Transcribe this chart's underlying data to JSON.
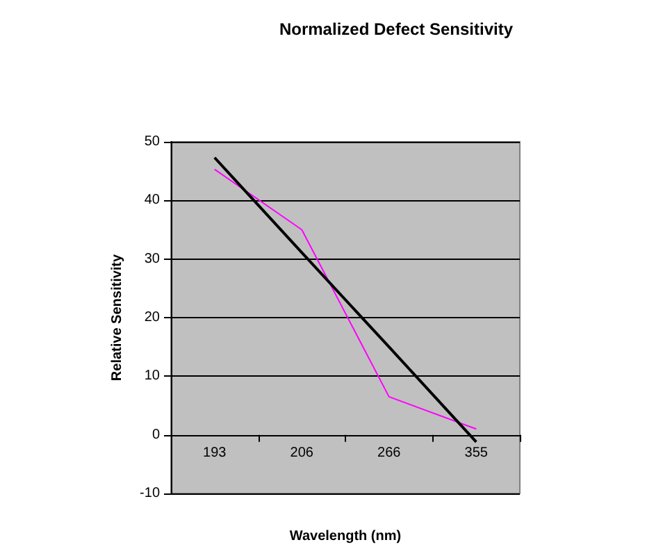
{
  "chart_data": {
    "type": "line",
    "title": "Normalized Defect Sensitivity",
    "xlabel": "Wavelength (nm)",
    "ylabel": "Relative Sensitivity",
    "categories": [
      "193",
      "206",
      "266",
      "355"
    ],
    "series": [
      {
        "color": "#ff00ff",
        "values": [
          45.3,
          35,
          6.5,
          1
        ]
      },
      {
        "type": "line",
        "color": "#000000",
        "x": [
          "193",
          "206",
          "266",
          "355"
        ],
        "values": [
          47.3,
          31.1,
          15.0,
          -1.2
        ]
      }
    ],
    "ylim": [
      -10,
      50
    ],
    "yticks": [
      -10,
      0,
      10,
      20,
      30,
      40,
      50
    ],
    "grid": "y",
    "legend": false,
    "marker": "none"
  }
}
